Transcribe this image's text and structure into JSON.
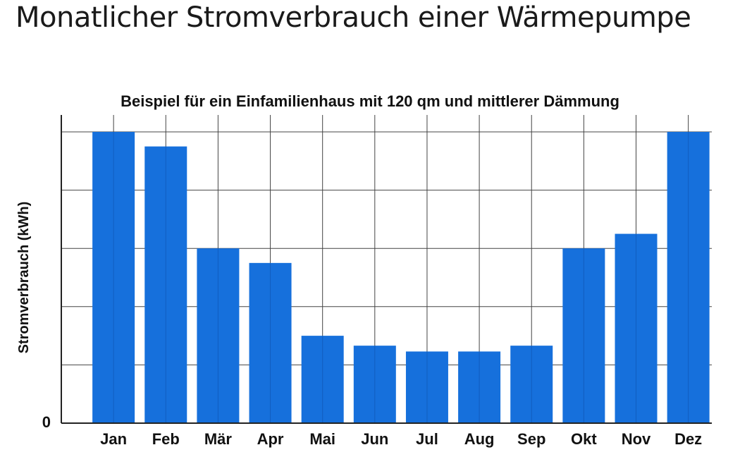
{
  "title": "Monatlicher Stromverbrauch einer Wärmepumpe",
  "chart_data": {
    "type": "bar",
    "subtitle": "Beispiel für ein Einfamilienhaus mit 120 qm und mittlerer Dämmung",
    "ylabel": "Stromverbrauch (kWh)",
    "xlabel": "",
    "categories": [
      "Jan",
      "Feb",
      "Mär",
      "Apr",
      "Mai",
      "Jun",
      "Jul",
      "Aug",
      "Sep",
      "Okt",
      "Nov",
      "Dez"
    ],
    "values": [
      5.0,
      4.75,
      3.0,
      2.75,
      1.5,
      1.33,
      1.23,
      1.23,
      1.33,
      3.0,
      3.25,
      5.0
    ],
    "ylim": [
      0,
      5
    ],
    "yticks": [
      0
    ],
    "ytick_labels": [
      "0"
    ],
    "grid": true,
    "bar_color": "#1670dc",
    "grid_color": "#444444"
  }
}
